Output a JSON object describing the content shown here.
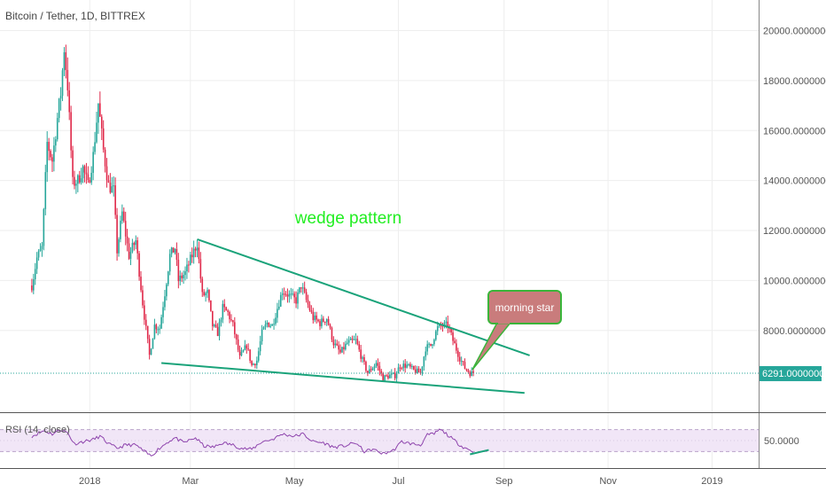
{
  "chart_data": {
    "type": "candlestick",
    "title": "Bitcoin / Tether, 1D, BITTREX",
    "price_axis": {
      "min": 4800,
      "max": 20800,
      "tick_labels": [
        "20000.00000000",
        "18000.00000000",
        "16000.00000000",
        "14000.00000000",
        "12000.00000000",
        "10000.00000000",
        "8000.00000000"
      ],
      "current_price_label": "6291.00000000"
    },
    "time_axis": {
      "labels": [
        "2018",
        "Mar",
        "May",
        "Jul",
        "Sep",
        "Nov",
        "2019"
      ]
    },
    "price_path": [
      [
        "2017-11-28",
        9800
      ],
      [
        "2017-12-01",
        10900
      ],
      [
        "2017-12-04",
        11300
      ],
      [
        "2017-12-07",
        15500
      ],
      [
        "2017-12-10",
        14800
      ],
      [
        "2017-12-13",
        16500
      ],
      [
        "2017-12-15",
        17500
      ],
      [
        "2017-12-17",
        19300
      ],
      [
        "2017-12-19",
        17800
      ],
      [
        "2017-12-22",
        13900
      ],
      [
        "2017-12-25",
        14000
      ],
      [
        "2017-12-28",
        14500
      ],
      [
        "2017-12-31",
        13800
      ],
      [
        "2018-01-03",
        15000
      ],
      [
        "2018-01-06",
        17100
      ],
      [
        "2018-01-09",
        15200
      ],
      [
        "2018-01-12",
        13800
      ],
      [
        "2018-01-15",
        13600
      ],
      [
        "2018-01-17",
        11200
      ],
      [
        "2018-01-20",
        12700
      ],
      [
        "2018-01-24",
        11000
      ],
      [
        "2018-01-28",
        11600
      ],
      [
        "2018-02-01",
        9100
      ],
      [
        "2018-02-05",
        7000
      ],
      [
        "2018-02-08",
        8200
      ],
      [
        "2018-02-11",
        8100
      ],
      [
        "2018-02-14",
        9500
      ],
      [
        "2018-02-17",
        11000
      ],
      [
        "2018-02-20",
        11300
      ],
      [
        "2018-02-22",
        10000
      ],
      [
        "2018-02-26",
        10300
      ],
      [
        "2018-03-02",
        11000
      ],
      [
        "2018-03-05",
        11500
      ],
      [
        "2018-03-08",
        9400
      ],
      [
        "2018-03-11",
        9500
      ],
      [
        "2018-03-14",
        8200
      ],
      [
        "2018-03-17",
        7900
      ],
      [
        "2018-03-20",
        8900
      ],
      [
        "2018-03-23",
        8700
      ],
      [
        "2018-03-26",
        8200
      ],
      [
        "2018-03-30",
        6900
      ],
      [
        "2018-04-03",
        7400
      ],
      [
        "2018-04-06",
        6600
      ],
      [
        "2018-04-09",
        6800
      ],
      [
        "2018-04-12",
        7900
      ],
      [
        "2018-04-15",
        8300
      ],
      [
        "2018-04-18",
        8200
      ],
      [
        "2018-04-21",
        8900
      ],
      [
        "2018-04-24",
        9600
      ],
      [
        "2018-04-28",
        9400
      ],
      [
        "2018-05-02",
        9200
      ],
      [
        "2018-05-05",
        9800
      ],
      [
        "2018-05-08",
        9200
      ],
      [
        "2018-05-12",
        8500
      ],
      [
        "2018-05-16",
        8300
      ],
      [
        "2018-05-20",
        8500
      ],
      [
        "2018-05-24",
        7500
      ],
      [
        "2018-05-28",
        7100
      ],
      [
        "2018-06-01",
        7500
      ],
      [
        "2018-06-06",
        7600
      ],
      [
        "2018-06-10",
        6800
      ],
      [
        "2018-06-13",
        6300
      ],
      [
        "2018-06-18",
        6700
      ],
      [
        "2018-06-22",
        6100
      ],
      [
        "2018-06-26",
        6200
      ],
      [
        "2018-06-29",
        6200
      ],
      [
        "2018-07-02",
        6600
      ],
      [
        "2018-07-06",
        6600
      ],
      [
        "2018-07-10",
        6400
      ],
      [
        "2018-07-14",
        6300
      ],
      [
        "2018-07-17",
        7300
      ],
      [
        "2018-07-20",
        7400
      ],
      [
        "2018-07-24",
        8100
      ],
      [
        "2018-07-27",
        8200
      ],
      [
        "2018-07-30",
        8200
      ],
      [
        "2018-08-02",
        7600
      ],
      [
        "2018-08-06",
        6900
      ],
      [
        "2018-08-09",
        6500
      ],
      [
        "2018-08-12",
        6300
      ],
      [
        "2018-08-14",
        6291
      ]
    ],
    "rsi": {
      "title": "RSI (14, close)",
      "axis_label": "50.0000",
      "upper_band": 70,
      "lower_band": 30,
      "min": 0,
      "max": 100,
      "values": [
        [
          "2017-11-28",
          58
        ],
        [
          "2017-12-05",
          68
        ],
        [
          "2017-12-10",
          62
        ],
        [
          "2017-12-15",
          70
        ],
        [
          "2017-12-19",
          64
        ],
        [
          "2017-12-23",
          44
        ],
        [
          "2017-12-28",
          48
        ],
        [
          "2018-01-03",
          52
        ],
        [
          "2018-01-07",
          58
        ],
        [
          "2018-01-12",
          44
        ],
        [
          "2018-01-17",
          36
        ],
        [
          "2018-01-22",
          42
        ],
        [
          "2018-01-28",
          42
        ],
        [
          "2018-02-02",
          30
        ],
        [
          "2018-02-06",
          22
        ],
        [
          "2018-02-10",
          34
        ],
        [
          "2018-02-16",
          48
        ],
        [
          "2018-02-20",
          55
        ],
        [
          "2018-02-25",
          46
        ],
        [
          "2018-03-04",
          55
        ],
        [
          "2018-03-09",
          40
        ],
        [
          "2018-03-15",
          38
        ],
        [
          "2018-03-20",
          46
        ],
        [
          "2018-03-26",
          42
        ],
        [
          "2018-03-31",
          36
        ],
        [
          "2018-04-06",
          34
        ],
        [
          "2018-04-12",
          48
        ],
        [
          "2018-04-18",
          52
        ],
        [
          "2018-04-24",
          62
        ],
        [
          "2018-05-01",
          58
        ],
        [
          "2018-05-06",
          62
        ],
        [
          "2018-05-12",
          48
        ],
        [
          "2018-05-18",
          46
        ],
        [
          "2018-05-24",
          38
        ],
        [
          "2018-05-30",
          40
        ],
        [
          "2018-06-06",
          46
        ],
        [
          "2018-06-11",
          30
        ],
        [
          "2018-06-16",
          34
        ],
        [
          "2018-06-22",
          26
        ],
        [
          "2018-06-28",
          32
        ],
        [
          "2018-07-03",
          48
        ],
        [
          "2018-07-09",
          44
        ],
        [
          "2018-07-14",
          42
        ],
        [
          "2018-07-18",
          60
        ],
        [
          "2018-07-22",
          62
        ],
        [
          "2018-07-25",
          70
        ],
        [
          "2018-07-28",
          65
        ],
        [
          "2018-08-02",
          52
        ],
        [
          "2018-08-07",
          40
        ],
        [
          "2018-08-11",
          34
        ],
        [
          "2018-08-14",
          30
        ]
      ]
    },
    "annotations": {
      "pattern_label": "wedge pattern",
      "callout_label": "morning star",
      "upper_trendline": [
        [
          "2018-03-05",
          11650
        ],
        [
          "2018-09-16",
          7000
        ]
      ],
      "lower_trendline": [
        [
          "2018-02-12",
          6700
        ],
        [
          "2018-09-13",
          5500
        ]
      ],
      "rsi_trendline": [
        [
          "2018-08-12",
          25
        ],
        [
          "2018-08-23",
          33
        ]
      ],
      "current_price_line": 6291
    },
    "colors": {
      "up": "#26a69a",
      "down": "#e0294a",
      "trendline": "#1aa37a",
      "pattern_label": "#22ee22",
      "callout_fill": "#c97c7c",
      "callout_border": "#3ab53a",
      "price_label_bg": "#26a69a",
      "rsi_line": "#8e44ad",
      "rsi_band": "#f1e6f7",
      "grid": "#eeeeee"
    },
    "grid": true
  }
}
